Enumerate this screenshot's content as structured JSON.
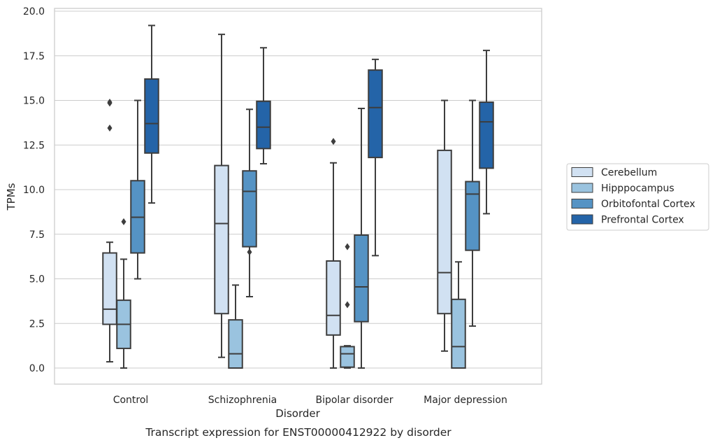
{
  "chart_data": {
    "type": "boxplot",
    "caption": "Transcript expression for ENST00000412922 by disorder",
    "xlabel": "Disorder",
    "ylabel": "TPMs",
    "ylim": [
      -0.9,
      20.2
    ],
    "yticks": [
      0.0,
      2.5,
      5.0,
      7.5,
      10.0,
      12.5,
      15.0,
      17.5,
      20.0
    ],
    "ytick_labels": [
      "0.0",
      "2.5",
      "5.0",
      "7.5",
      "10.0",
      "12.5",
      "15.0",
      "17.5",
      "20.0"
    ],
    "grid": "horizontal",
    "legend_position": "right",
    "categories": [
      "Control",
      "Schizophrenia",
      "Bipolar disorder",
      "Major depression"
    ],
    "series": [
      {
        "name": "Cerebellum",
        "color": "#d1e1f2",
        "boxes": [
          {
            "whisker_low": 0.35,
            "q1": 2.45,
            "median": 3.3,
            "q3": 6.45,
            "whisker_high": 7.05,
            "outliers": [
              13.45,
              14.85,
              14.9
            ]
          },
          {
            "whisker_low": 0.6,
            "q1": 3.05,
            "median": 8.1,
            "q3": 11.35,
            "whisker_high": 18.7,
            "outliers": []
          },
          {
            "whisker_low": 0.0,
            "q1": 1.85,
            "median": 2.95,
            "q3": 6.0,
            "whisker_high": 11.5,
            "outliers": [
              12.7
            ]
          },
          {
            "whisker_low": 0.95,
            "q1": 3.05,
            "median": 5.35,
            "q3": 12.2,
            "whisker_high": 15.0,
            "outliers": []
          }
        ]
      },
      {
        "name": "Hipppocampus",
        "color": "#9ac3df",
        "boxes": [
          {
            "whisker_low": 0.0,
            "q1": 1.1,
            "median": 2.45,
            "q3": 3.8,
            "whisker_high": 6.1,
            "outliers": [
              8.2
            ]
          },
          {
            "whisker_low": 0.0,
            "q1": 0.0,
            "median": 0.8,
            "q3": 2.7,
            "whisker_high": 4.65,
            "outliers": []
          },
          {
            "whisker_low": 0.0,
            "q1": 0.05,
            "median": 0.8,
            "q3": 1.2,
            "whisker_high": 1.25,
            "outliers": [
              3.55,
              6.8
            ]
          },
          {
            "whisker_low": 0.0,
            "q1": 0.0,
            "median": 1.2,
            "q3": 3.85,
            "whisker_high": 5.95,
            "outliers": []
          }
        ]
      },
      {
        "name": "Orbitofontal Cortex",
        "color": "#5593c4",
        "boxes": [
          {
            "whisker_low": 5.0,
            "q1": 6.45,
            "median": 8.45,
            "q3": 10.5,
            "whisker_high": 15.0,
            "outliers": []
          },
          {
            "whisker_low": 4.0,
            "q1": 6.8,
            "median": 9.9,
            "q3": 11.05,
            "whisker_high": 14.5,
            "outliers": [
              6.5
            ]
          },
          {
            "whisker_low": 0.0,
            "q1": 2.6,
            "median": 4.55,
            "q3": 7.45,
            "whisker_high": 14.55,
            "outliers": []
          },
          {
            "whisker_low": 2.35,
            "q1": 6.6,
            "median": 9.75,
            "q3": 10.45,
            "whisker_high": 15.0,
            "outliers": []
          }
        ]
      },
      {
        "name": "Prefrontal Cortex",
        "color": "#2464a8",
        "boxes": [
          {
            "whisker_low": 9.25,
            "q1": 12.05,
            "median": 13.7,
            "q3": 16.2,
            "whisker_high": 19.2,
            "outliers": []
          },
          {
            "whisker_low": 11.45,
            "q1": 12.3,
            "median": 13.5,
            "q3": 14.95,
            "whisker_high": 17.95,
            "outliers": []
          },
          {
            "whisker_low": 6.3,
            "q1": 11.8,
            "median": 14.6,
            "q3": 16.7,
            "whisker_high": 17.3,
            "outliers": []
          },
          {
            "whisker_low": 8.65,
            "q1": 11.2,
            "median": 13.8,
            "q3": 14.9,
            "whisker_high": 17.8,
            "outliers": []
          }
        ]
      }
    ]
  }
}
